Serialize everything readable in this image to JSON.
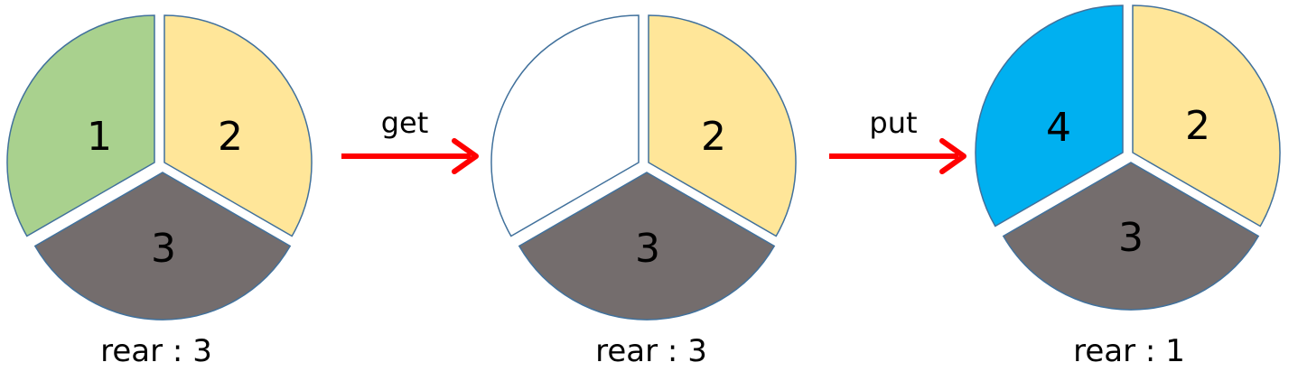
{
  "colors": {
    "green": "#a9d18e",
    "yellow": "#ffe699",
    "gray": "#746d6d",
    "blue": "#00b0f0",
    "empty": "#ffffff",
    "outline": "#41719c",
    "arrow": "#ff0000"
  },
  "pies": [
    {
      "rear_label": "rear : 3",
      "segments": [
        {
          "label": "1",
          "color": "green"
        },
        {
          "label": "2",
          "color": "yellow"
        },
        {
          "label": "3",
          "color": "gray"
        }
      ]
    },
    {
      "rear_label": "rear : 3",
      "segments": [
        {
          "label": "",
          "color": "empty"
        },
        {
          "label": "2",
          "color": "yellow"
        },
        {
          "label": "3",
          "color": "gray"
        }
      ]
    },
    {
      "rear_label": "rear : 1",
      "segments": [
        {
          "label": "4",
          "color": "blue"
        },
        {
          "label": "2",
          "color": "yellow"
        },
        {
          "label": "3",
          "color": "gray"
        }
      ]
    }
  ],
  "arrows": [
    {
      "label": "get"
    },
    {
      "label": "put"
    }
  ]
}
